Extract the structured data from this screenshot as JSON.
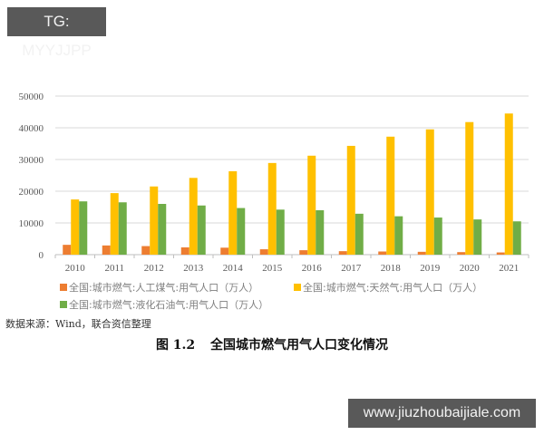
{
  "watermarks": {
    "top_left": "TG: MYYJJPP",
    "bottom_right": "www.jiuzhoubaijiale.com"
  },
  "colors": {
    "artificial_gas": "#ED7D31",
    "natural_gas": "#FFC000",
    "lpg": "#70AD47",
    "grid": "#D9D9D9",
    "badge_bg": "#595959"
  },
  "legend": {
    "items": [
      {
        "label": "全国:城市燃气:人工煤气:用气人口（万人）",
        "color": "#ED7D31"
      },
      {
        "label": "全国:城市燃气:天然气:用气人口（万人）",
        "color": "#FFC000"
      },
      {
        "label": "全国:城市燃气:液化石油气:用气人口（万人）",
        "color": "#70AD47"
      }
    ]
  },
  "source": "数据来源：Wind，联合资信整理",
  "caption": {
    "figure_no": "图 1.2",
    "title": "全国城市燃气用气人口变化情况"
  },
  "chart_data": {
    "type": "bar",
    "title": "全国城市燃气用气人口变化情况",
    "xlabel": "",
    "ylabel": "",
    "ylim": [
      0,
      50000
    ],
    "yticks": [
      0,
      10000,
      20000,
      30000,
      40000,
      50000
    ],
    "grid": true,
    "legend_position": "bottom",
    "categories": [
      "2010",
      "2011",
      "2012",
      "2013",
      "2014",
      "2015",
      "2016",
      "2017",
      "2018",
      "2019",
      "2020",
      "2021"
    ],
    "series": [
      {
        "name": "全国:城市燃气:人工煤气:用气人口（万人）",
        "color": "#ED7D31",
        "values": [
          3100,
          2900,
          2700,
          2300,
          2200,
          1700,
          1400,
          1100,
          1000,
          900,
          800,
          700
        ]
      },
      {
        "name": "全国:城市燃气:天然气:用气人口（万人）",
        "color": "#FFC000",
        "values": [
          17400,
          19400,
          21500,
          24200,
          26300,
          28900,
          31200,
          34300,
          37200,
          39500,
          41800,
          44500
        ]
      },
      {
        "name": "全国:城市燃气:液化石油气:用气人口（万人）",
        "color": "#70AD47",
        "values": [
          16800,
          16500,
          16000,
          15500,
          14700,
          14200,
          14000,
          12900,
          12100,
          11700,
          11100,
          10500
        ]
      }
    ]
  }
}
